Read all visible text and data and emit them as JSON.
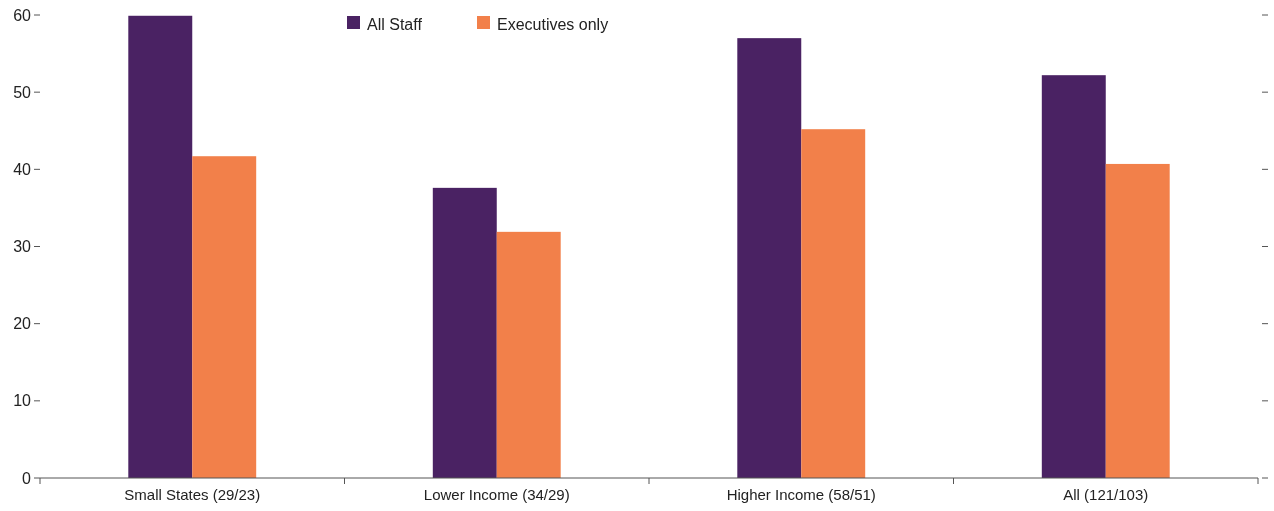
{
  "chart_data": {
    "type": "bar",
    "categories": [
      "Small States (29/23)",
      "Lower Income (34/29)",
      "Higher Income (58/51)",
      "All (121/103)"
    ],
    "series": [
      {
        "name": "All Staff",
        "color": "#4a2263",
        "values": [
          59.9,
          37.6,
          57.0,
          52.2
        ]
      },
      {
        "name": "Executives only",
        "color": "#f2804a",
        "values": [
          41.7,
          31.9,
          45.2,
          40.7
        ]
      }
    ],
    "ylim": [
      0,
      60
    ],
    "yticks": [
      0,
      10,
      20,
      30,
      40,
      50,
      60
    ],
    "grid": false,
    "legend": "top"
  }
}
